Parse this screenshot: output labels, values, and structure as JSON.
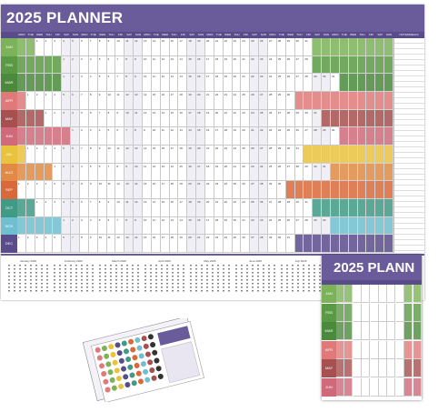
{
  "main_planner": {
    "title": "2025 PLANNER",
    "notes_label": "NOTES/DEALS",
    "day_headers": [
      "MON",
      "TUE",
      "WED",
      "THU",
      "FRI",
      "SAT",
      "SUN",
      "MON",
      "TUE",
      "WED",
      "THU",
      "FRI",
      "SAT",
      "SUN",
      "MON",
      "TUE",
      "WED",
      "THU",
      "FRI",
      "SAT",
      "SUN",
      "MON",
      "TUE",
      "WED",
      "THU",
      "FRI",
      "SAT",
      "SUN",
      "MON",
      "TUE",
      "WED",
      "THU",
      "FRI",
      "SAT",
      "SUN",
      "MON",
      "TUE",
      "WED",
      "THU",
      "FRI",
      "SAT",
      "SUN"
    ],
    "months": [
      {
        "label": "JAN",
        "color": "#7cb35a",
        "start": 2,
        "days": 31
      },
      {
        "label": "FEB",
        "color": "#5a9a45",
        "start": 5,
        "days": 28
      },
      {
        "label": "MAR",
        "color": "#4b8a3c",
        "start": 5,
        "days": 31
      },
      {
        "label": "APR",
        "color": "#e07a7a",
        "start": 1,
        "days": 30
      },
      {
        "label": "MAY",
        "color": "#a85050",
        "start": 3,
        "days": 31
      },
      {
        "label": "JUN",
        "color": "#d0697a",
        "start": 6,
        "days": 30
      },
      {
        "label": "JUL",
        "color": "#e9c23e",
        "start": 1,
        "days": 31
      },
      {
        "label": "AUG",
        "color": "#e08a45",
        "start": 4,
        "days": 31
      },
      {
        "label": "SEP",
        "color": "#d9693a",
        "start": 0,
        "days": 30
      },
      {
        "label": "OCT",
        "color": "#3f9a86",
        "start": 2,
        "days": 31
      },
      {
        "label": "NOV",
        "color": "#6fbfd0",
        "start": 5,
        "days": 30
      },
      {
        "label": "DEC",
        "color": "#5a4c8b",
        "start": 0,
        "days": 31
      }
    ],
    "footer_months": [
      "January 2026",
      "February 2026",
      "March 2026",
      "April 2026",
      "May 2026",
      "June 2026",
      "July 2026",
      "August 2026",
      "September 2026"
    ]
  },
  "small_planner": {
    "title": "2025 PLANN",
    "months": [
      {
        "label": "JAN",
        "color": "#7cb35a"
      },
      {
        "label": "FEB",
        "color": "#5a9a45"
      },
      {
        "label": "MAR",
        "color": "#4b8a3c"
      },
      {
        "label": "APR",
        "color": "#e07a7a"
      },
      {
        "label": "MAY",
        "color": "#a85050"
      },
      {
        "label": "JUN",
        "color": "#d0697a"
      }
    ]
  },
  "sticker_sheet": {
    "accent": "#6a5b9a"
  }
}
